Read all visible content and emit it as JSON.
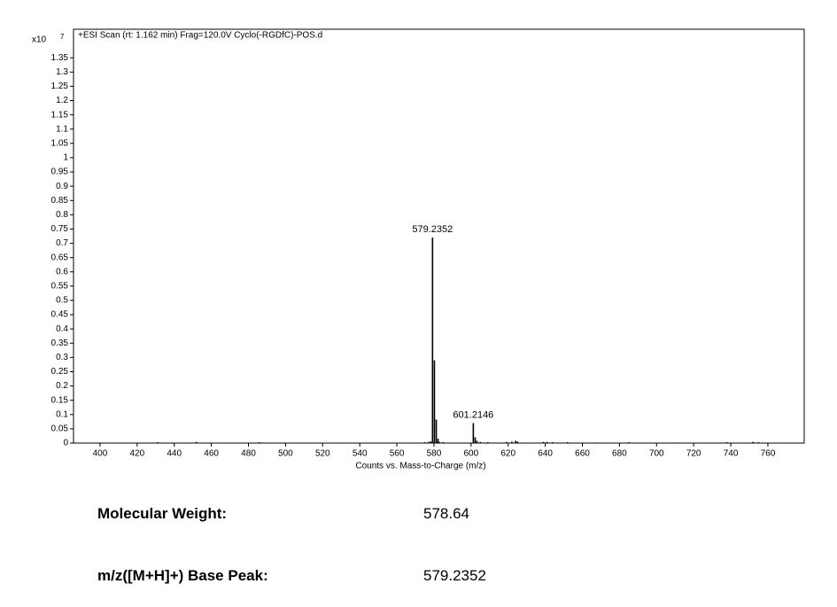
{
  "chart_data": {
    "type": "spectrum",
    "title": "+ESI Scan (rt: 1.162 min) Frag=120.0V Cyclo(-RGDfC)-POS.d",
    "y_scale_label": "x10",
    "y_scale_exponent": "7",
    "x_label": "Counts vs. Mass-to-Charge (m/z)",
    "color": "#000000",
    "x": [
      431,
      452,
      486,
      575,
      577,
      578.2,
      579.2352,
      580.24,
      581.24,
      582.2,
      583,
      585,
      601.2146,
      602.22,
      603.2,
      605,
      609,
      619,
      622,
      624,
      625,
      639,
      641,
      644,
      652,
      668,
      685,
      709,
      738,
      752,
      755
    ],
    "values": [
      0.003,
      0.004,
      0.003,
      0.003,
      0.004,
      0.006,
      0.72,
      0.29,
      0.082,
      0.015,
      0.004,
      0.003,
      0.07,
      0.02,
      0.008,
      0.004,
      0.003,
      0.004,
      0.005,
      0.008,
      0.005,
      0.004,
      0.004,
      0.003,
      0.003,
      0.002,
      0.003,
      0.002,
      0.003,
      0.004,
      0.003
    ],
    "x_labels": [
      null,
      null,
      null,
      null,
      null,
      null,
      "579.2352",
      null,
      null,
      null,
      null,
      null,
      "601.2146",
      null,
      null,
      null,
      null,
      null,
      null,
      null,
      null,
      null,
      null,
      null,
      null,
      null,
      null,
      null,
      null,
      null,
      null
    ],
    "xlim": [
      385.7,
      779.6
    ],
    "ylim": [
      0,
      1.45
    ],
    "xticks": [
      400,
      420,
      440,
      460,
      480,
      500,
      520,
      540,
      560,
      580,
      600,
      620,
      640,
      660,
      680,
      700,
      720,
      740,
      760
    ],
    "yticks": [
      0,
      0.05,
      0.1,
      0.15,
      0.2,
      0.25,
      0.3,
      0.35,
      0.4,
      0.45,
      0.5,
      0.55,
      0.6,
      0.65,
      0.7,
      0.75,
      0.8,
      0.85,
      0.9,
      0.95,
      1,
      1.05,
      1.1,
      1.15,
      1.2,
      1.25,
      1.3,
      1.35
    ],
    "grid": false
  },
  "info": [
    {
      "label": "Molecular Weight:",
      "value": "578.64"
    },
    {
      "label": "m/z([M+H]+) Base Peak:",
      "value": "579.2352"
    }
  ]
}
